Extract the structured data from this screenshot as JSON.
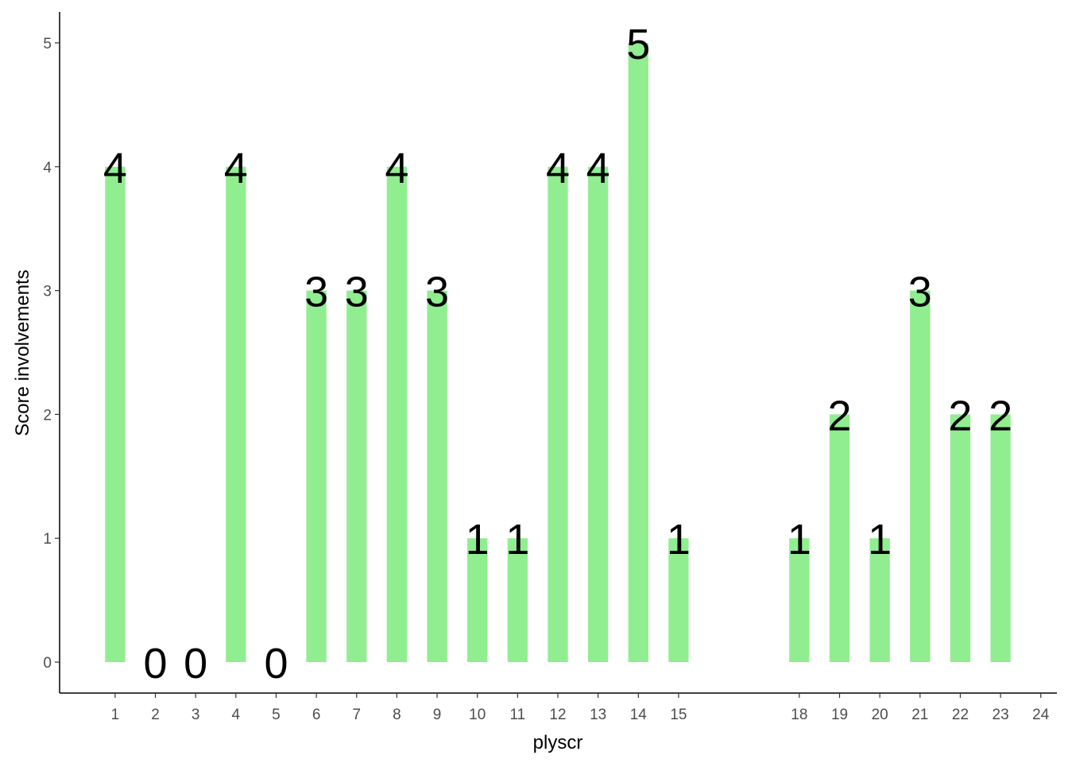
{
  "chart_data": {
    "type": "bar",
    "x_label": "plyscr",
    "y_label": "Score involvements",
    "x": [
      1,
      2,
      3,
      4,
      5,
      6,
      7,
      8,
      9,
      10,
      11,
      12,
      13,
      14,
      15,
      18,
      19,
      20,
      21,
      22,
      23
    ],
    "values": [
      4,
      0,
      0,
      4,
      0,
      3,
      3,
      4,
      3,
      1,
      1,
      4,
      4,
      5,
      1,
      1,
      2,
      1,
      3,
      2,
      2
    ],
    "color": "#90ee90",
    "xlim": [
      -0.38,
      24.4
    ],
    "xticks": [
      1,
      2,
      3,
      4,
      5,
      6,
      7,
      8,
      9,
      10,
      11,
      12,
      13,
      14,
      15,
      18,
      19,
      20,
      21,
      22,
      23,
      24
    ],
    "ylim": [
      -0.25,
      5.25
    ],
    "yticks": [
      0,
      1,
      2,
      3,
      4,
      5
    ],
    "grid": false
  }
}
